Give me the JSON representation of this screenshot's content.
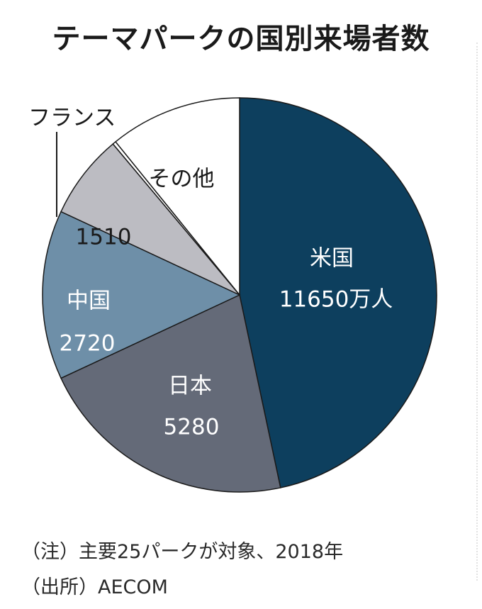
{
  "chart_data": {
    "type": "pie",
    "title": "テーマパークの国別来場者数",
    "slices": [
      {
        "category": "米国",
        "value": 11650,
        "value_label": "11650万人",
        "color": "#0d3f5e",
        "label_color": "#ffffff",
        "border": false
      },
      {
        "category": "日本",
        "value": 5280,
        "value_label": "5280",
        "color": "#646a78",
        "label_color": "#ffffff",
        "border": false
      },
      {
        "category": "中国",
        "value": 2720,
        "value_label": "2720",
        "color": "#6e8fa8",
        "label_color": "#ffffff",
        "border": false
      },
      {
        "category": "",
        "value": 1510,
        "value_label": "1510",
        "color": "#bcbcc2",
        "label_color": "#1a1a1a",
        "border": false
      },
      {
        "category": "フランス",
        "value": null,
        "value_label": "",
        "color": "#ffffff",
        "label_color": "#1a1a1a",
        "border": false
      },
      {
        "category": "その他",
        "value": null,
        "value_label": "",
        "color": "#ffffff",
        "label_color": "#1a1a1a",
        "border": true
      }
    ],
    "slice_angles_deg": [
      0,
      168,
      245,
      295,
      320,
      321,
      360
    ]
  },
  "notes": {
    "note": "（注）主要25パークが対象、2018年",
    "source": "（出所）AECOM"
  }
}
